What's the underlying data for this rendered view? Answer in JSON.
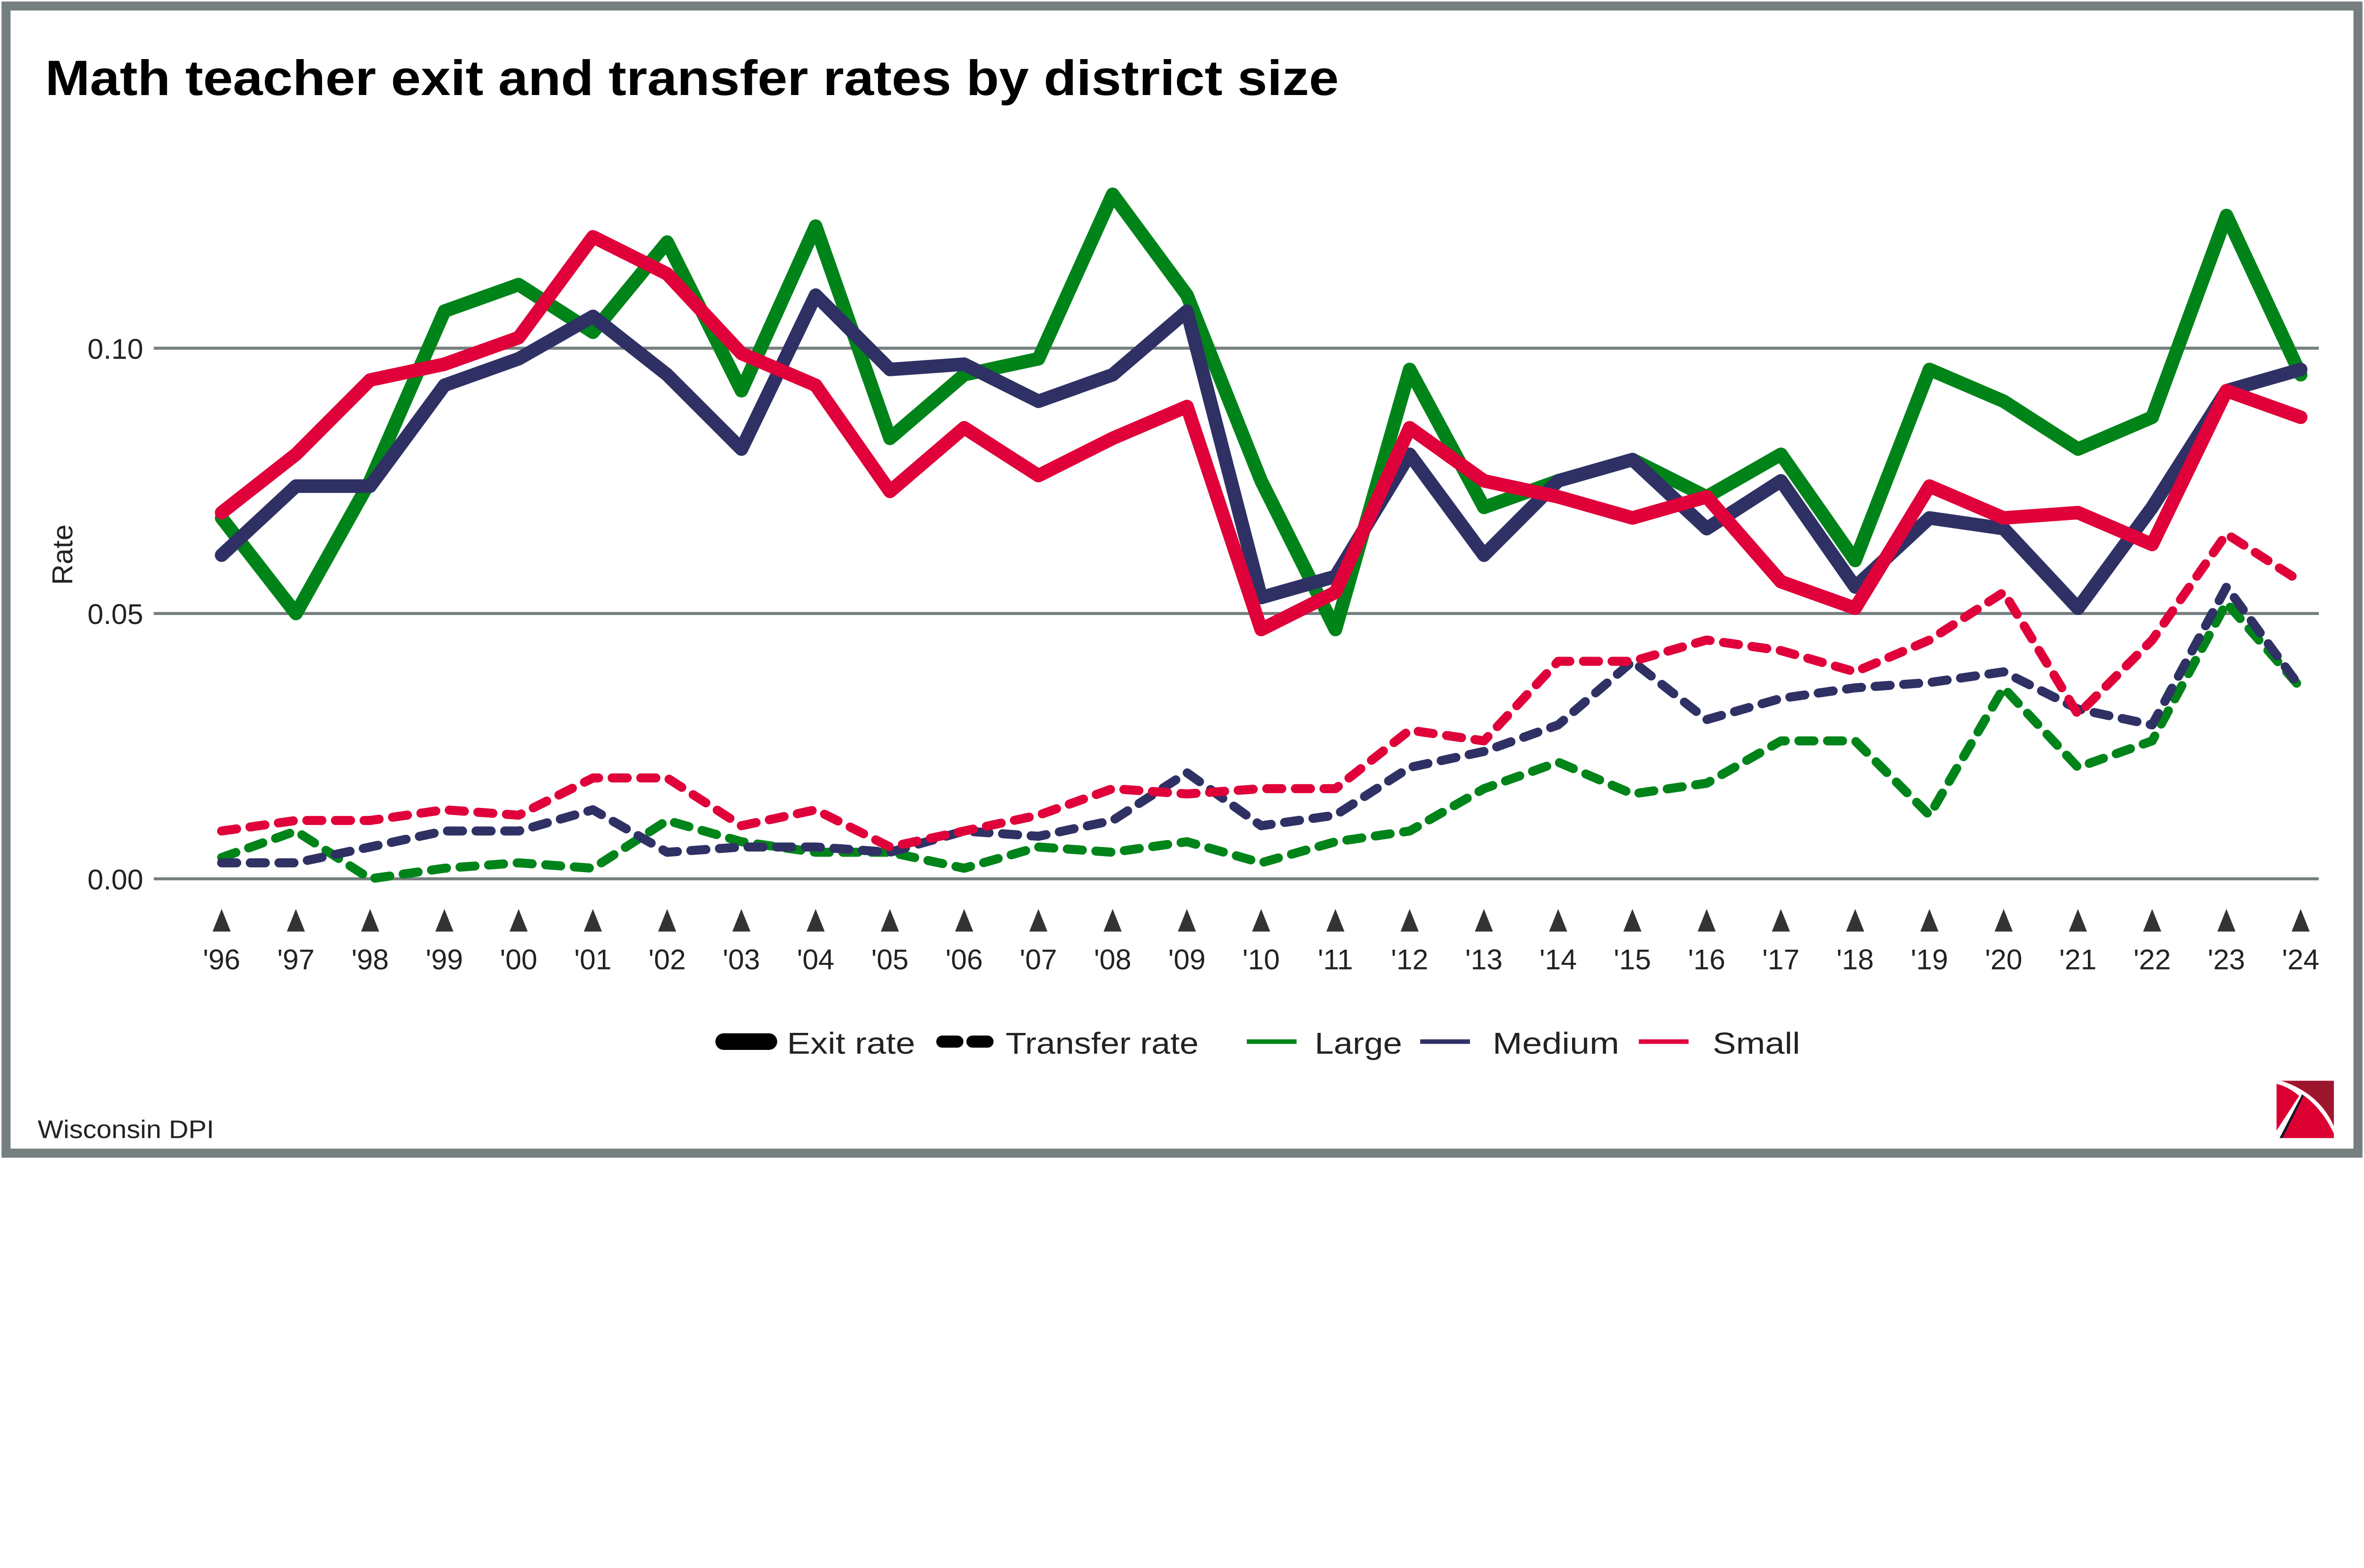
{
  "chart_data": {
    "type": "line",
    "title": "Math teacher exit and transfer rates by district size",
    "xlabel": "",
    "ylabel": "Rate",
    "categories": [
      "'96",
      "'97",
      "'98",
      "'99",
      "'00",
      "'01",
      "'02",
      "'03",
      "'04",
      "'05",
      "'06",
      "'07",
      "'08",
      "'09",
      "'10",
      "'11",
      "'12",
      "'13",
      "'14",
      "'15",
      "'16",
      "'17",
      "'18",
      "'19",
      "'20",
      "'21",
      "'22",
      "'23",
      "'24"
    ],
    "yticks": [
      "0.00",
      "0.05",
      "0.10"
    ],
    "ylim": [
      0,
      0.135
    ],
    "grid": true,
    "legend_position": "bottom",
    "legend": {
      "exit_label": "Exit rate",
      "transfer_label": "Transfer rate",
      "large_label": "Large",
      "medium_label": "Medium",
      "small_label": "Small"
    },
    "colors": {
      "Large": "#00841a",
      "Medium": "#2f3165",
      "Small": "#e0003a",
      "grid": "#767f7f",
      "frame": "#767f7f"
    },
    "series": [
      {
        "size": "Large",
        "metric": "Exit rate",
        "style": "solid",
        "values": [
          0.068,
          0.05,
          0.075,
          0.107,
          0.112,
          0.103,
          0.12,
          0.092,
          0.123,
          0.083,
          0.095,
          0.098,
          0.129,
          0.11,
          0.075,
          0.047,
          0.096,
          0.07,
          0.075,
          0.079,
          0.072,
          0.08,
          0.06,
          0.096,
          0.09,
          0.081,
          0.087,
          0.125,
          0.095
        ]
      },
      {
        "size": "Medium",
        "metric": "Exit rate",
        "style": "solid",
        "values": [
          0.061,
          0.074,
          0.074,
          0.093,
          0.098,
          0.106,
          0.095,
          0.081,
          0.11,
          0.096,
          0.097,
          0.09,
          0.095,
          0.107,
          0.053,
          0.057,
          0.08,
          0.061,
          0.075,
          0.079,
          0.066,
          0.075,
          0.055,
          0.068,
          0.066,
          0.051,
          0.07,
          0.092,
          0.096
        ]
      },
      {
        "size": "Small",
        "metric": "Exit rate",
        "style": "solid",
        "values": [
          0.069,
          0.08,
          0.094,
          0.097,
          0.102,
          0.121,
          0.114,
          0.099,
          0.093,
          0.073,
          0.085,
          0.076,
          0.083,
          0.089,
          0.047,
          0.054,
          0.085,
          0.075,
          0.072,
          0.068,
          0.072,
          0.056,
          0.051,
          0.074,
          0.068,
          0.069,
          0.063,
          0.092,
          0.087
        ]
      },
      {
        "size": "Large",
        "metric": "Transfer rate",
        "style": "dashed",
        "values": [
          0.004,
          0.009,
          0.0,
          0.002,
          0.003,
          0.002,
          0.011,
          0.007,
          0.005,
          0.005,
          0.002,
          0.006,
          0.005,
          0.007,
          0.003,
          0.007,
          0.009,
          0.017,
          0.022,
          0.016,
          0.018,
          0.026,
          0.026,
          0.012,
          0.036,
          0.021,
          0.026,
          0.052,
          0.036
        ]
      },
      {
        "size": "Medium",
        "metric": "Transfer rate",
        "style": "dashed",
        "values": [
          0.003,
          0.003,
          0.006,
          0.009,
          0.009,
          0.013,
          0.005,
          0.006,
          0.006,
          0.005,
          0.009,
          0.008,
          0.011,
          0.02,
          0.01,
          0.012,
          0.021,
          0.024,
          0.029,
          0.041,
          0.03,
          0.034,
          0.036,
          0.037,
          0.039,
          0.032,
          0.029,
          0.055,
          0.036
        ]
      },
      {
        "size": "Small",
        "metric": "Transfer rate",
        "style": "dashed",
        "values": [
          0.009,
          0.011,
          0.011,
          0.013,
          0.012,
          0.019,
          0.019,
          0.01,
          0.013,
          0.006,
          0.009,
          0.012,
          0.017,
          0.016,
          0.017,
          0.017,
          0.028,
          0.026,
          0.041,
          0.041,
          0.045,
          0.043,
          0.039,
          0.045,
          0.054,
          0.031,
          0.045,
          0.065,
          0.056
        ]
      }
    ]
  },
  "footer": {
    "source": "Wisconsin DPI",
    "logo": "Wisconsin DPI pickaxe logo"
  }
}
